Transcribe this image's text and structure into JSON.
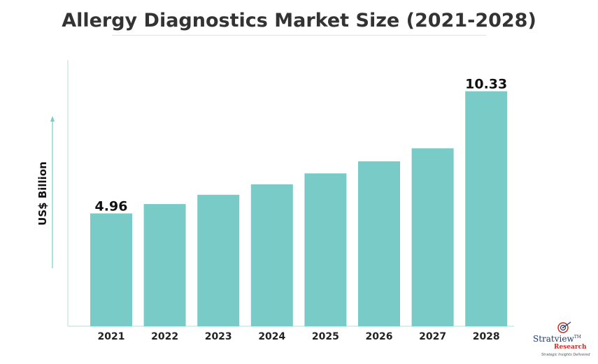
{
  "chart_data": {
    "type": "bar",
    "title": "Allergy Diagnostics Market Size (2021-2028)",
    "ylabel": "US$ Billion",
    "xlabel": "",
    "categories": [
      "2021",
      "2022",
      "2023",
      "2024",
      "2025",
      "2026",
      "2027",
      "2028"
    ],
    "values": [
      4.96,
      5.37,
      5.78,
      6.24,
      6.72,
      7.25,
      7.82,
      10.33
    ],
    "data_labels": [
      {
        "category": "2021",
        "text": "4.96"
      },
      {
        "category": "2028",
        "text": "10.33"
      }
    ],
    "ylim": [
      0,
      11.7
    ],
    "grid": false,
    "bar_color": "#78cbc6",
    "axis_color": "#cde9e6"
  },
  "logo": {
    "name": "Stratview",
    "tm": "TM",
    "research": "Research",
    "tagline": "Strategic Insights Delivered"
  }
}
